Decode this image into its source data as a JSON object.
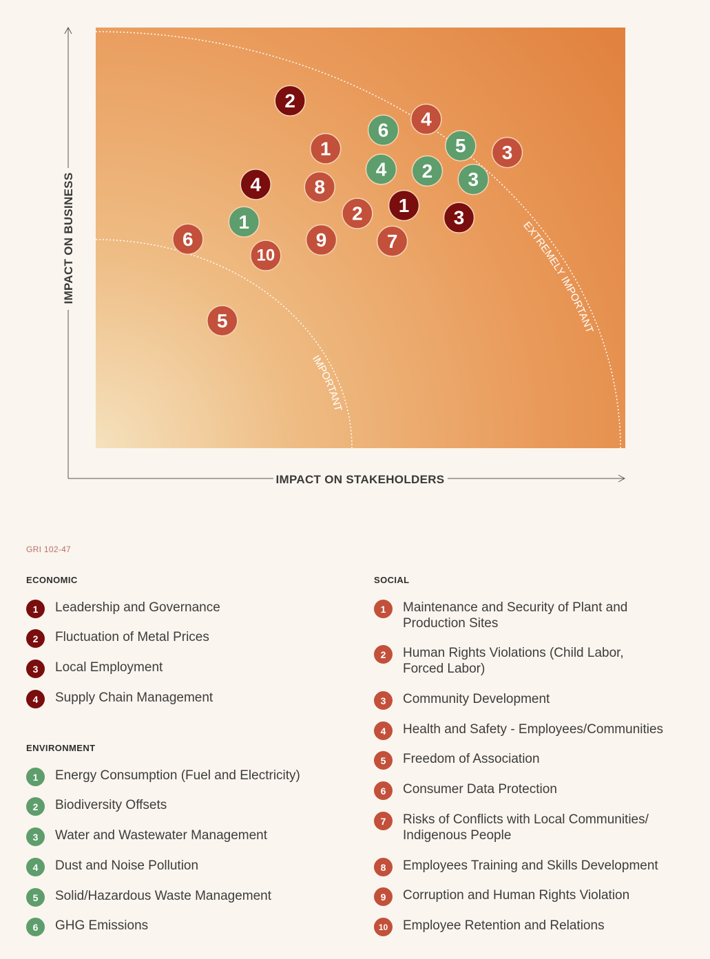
{
  "colors": {
    "economic": "#7a0d0d",
    "environment": "#5e9d6c",
    "social": "#c2503b",
    "bubble_border": "#f4d3b4"
  },
  "chart_data": {
    "type": "scatter",
    "xlabel": "IMPACT ON STAKEHOLDERS",
    "ylabel": "IMPACT ON BUSINESS",
    "xlim": [
      0,
      100
    ],
    "ylim": [
      0,
      100
    ],
    "zones": [
      {
        "label": "IMPORTANT"
      },
      {
        "label": "EXTREMELY IMPORTANT"
      }
    ],
    "series": [
      {
        "name": "ECONOMIC",
        "color": "#7a0d0d",
        "points": [
          {
            "label": "1",
            "x": 58.2,
            "y": 57.7
          },
          {
            "label": "2",
            "x": 36.7,
            "y": 82.6
          },
          {
            "label": "3",
            "x": 68.6,
            "y": 54.8
          },
          {
            "label": "4",
            "x": 30.2,
            "y": 62.7
          }
        ]
      },
      {
        "name": "ENVIRONMENT",
        "color": "#5e9d6c",
        "points": [
          {
            "label": "1",
            "x": 28.0,
            "y": 53.8
          },
          {
            "label": "2",
            "x": 62.6,
            "y": 65.9
          },
          {
            "label": "3",
            "x": 71.3,
            "y": 63.9
          },
          {
            "label": "4",
            "x": 53.9,
            "y": 66.3
          },
          {
            "label": "5",
            "x": 68.9,
            "y": 71.9
          },
          {
            "label": "6",
            "x": 54.3,
            "y": 75.6
          }
        ]
      },
      {
        "name": "SOCIAL",
        "color": "#c2503b",
        "points": [
          {
            "label": "1",
            "x": 43.4,
            "y": 71.2
          },
          {
            "label": "2",
            "x": 49.4,
            "y": 55.8
          },
          {
            "label": "3",
            "x": 77.7,
            "y": 70.3
          },
          {
            "label": "4",
            "x": 62.4,
            "y": 78.2
          },
          {
            "label": "5",
            "x": 23.9,
            "y": 30.3
          },
          {
            "label": "6",
            "x": 17.4,
            "y": 49.7
          },
          {
            "label": "7",
            "x": 56.0,
            "y": 49.2
          },
          {
            "label": "8",
            "x": 42.3,
            "y": 62.1
          },
          {
            "label": "9",
            "x": 42.6,
            "y": 49.5
          },
          {
            "label": "10",
            "x": 32.1,
            "y": 45.8
          }
        ]
      }
    ]
  },
  "reference": "GRI 102-47",
  "legend": {
    "economic": {
      "title": "ECONOMIC",
      "items": [
        {
          "num": "1",
          "text": "Leadership and Governance"
        },
        {
          "num": "2",
          "text": "Fluctuation of Metal Prices"
        },
        {
          "num": "3",
          "text": "Local Employment"
        },
        {
          "num": "4",
          "text": "Supply Chain Management"
        }
      ]
    },
    "environment": {
      "title": "ENVIRONMENT",
      "items": [
        {
          "num": "1",
          "text": "Energy Consumption (Fuel and Electricity)"
        },
        {
          "num": "2",
          "text": "Biodiversity Offsets"
        },
        {
          "num": "3",
          "text": "Water and Wastewater Management"
        },
        {
          "num": "4",
          "text": "Dust and Noise Pollution"
        },
        {
          "num": "5",
          "text": "Solid/Hazardous Waste Management"
        },
        {
          "num": "6",
          "text": "GHG Emissions"
        }
      ]
    },
    "social": {
      "title": "SOCIAL",
      "items": [
        {
          "num": "1",
          "text": "Maintenance and Security of Plant and Production Sites"
        },
        {
          "num": "2",
          "text": "Human Rights Violations (Child Labor, Forced Labor)"
        },
        {
          "num": "3",
          "text": "Community Development"
        },
        {
          "num": "4",
          "text": "Health and Safety - Employees/Communities"
        },
        {
          "num": "5",
          "text": "Freedom of Association"
        },
        {
          "num": "6",
          "text": "Consumer Data Protection"
        },
        {
          "num": "7",
          "text": "Risks of Conflicts with Local Communities/ Indigenous People"
        },
        {
          "num": "8",
          "text": "Employees Training and Skills Development"
        },
        {
          "num": "9",
          "text": "Corruption and Human Rights Violation"
        },
        {
          "num": "10",
          "text": "Employee Retention and Relations"
        }
      ]
    }
  }
}
